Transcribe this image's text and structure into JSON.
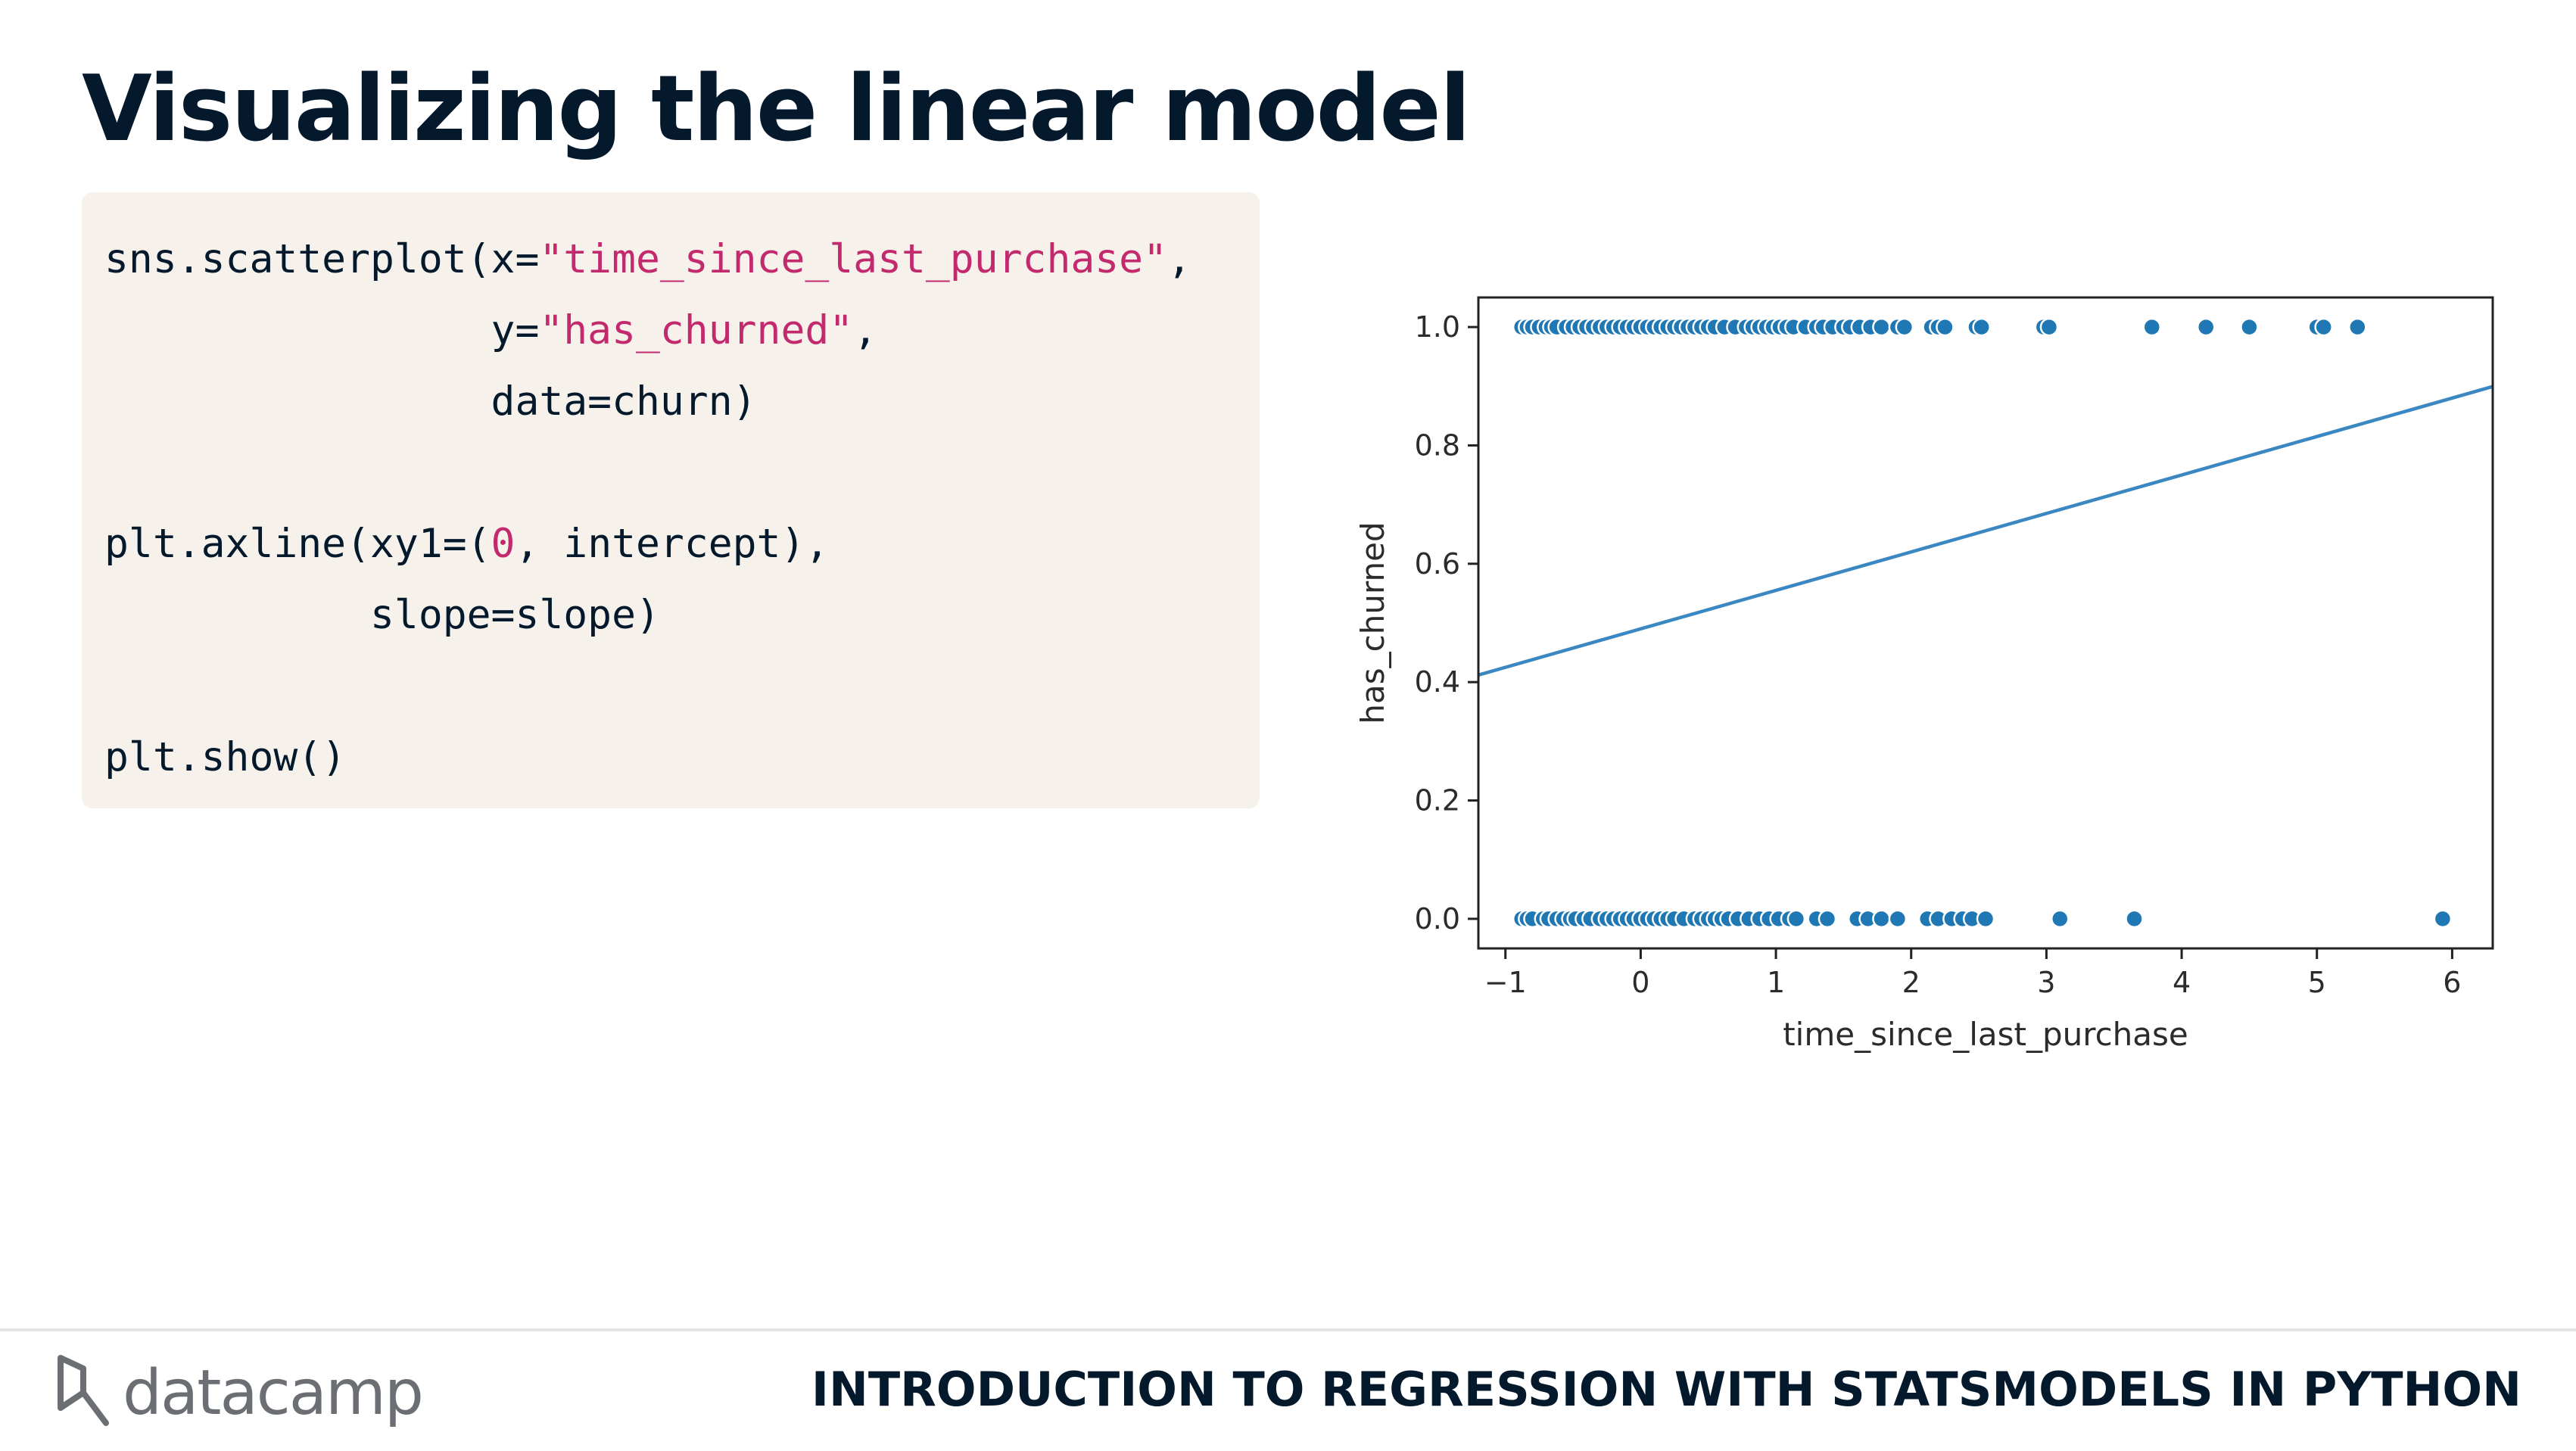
{
  "slide": {
    "title": "Visualizing the linear model",
    "course_title": "INTRODUCTION TO REGRESSION WITH STATSMODELS IN PYTHON",
    "brand": "datacamp",
    "logo_icon": "datacamp-logo-icon"
  },
  "code": {
    "lines": [
      [
        {
          "t": "sns.scatterplot(x="
        },
        {
          "t": "\"time_since_last_purchase\"",
          "c": "str"
        },
        {
          "t": ","
        }
      ],
      [
        {
          "t": "                y="
        },
        {
          "t": "\"has_churned\"",
          "c": "str"
        },
        {
          "t": ","
        }
      ],
      [
        {
          "t": "                data=churn)"
        }
      ],
      [
        {
          "t": ""
        }
      ],
      [
        {
          "t": "plt.axline(xy1=("
        },
        {
          "t": "0",
          "c": "num"
        },
        {
          "t": ", intercept),"
        }
      ],
      [
        {
          "t": "           slope=slope)"
        }
      ],
      [
        {
          "t": ""
        }
      ],
      [
        {
          "t": "plt.show()"
        }
      ]
    ]
  },
  "chart_data": {
    "type": "scatter",
    "xlabel": "time_since_last_purchase",
    "ylabel": "has_churned",
    "xlim": [
      -1.2,
      6.3
    ],
    "ylim": [
      -0.05,
      1.05
    ],
    "xticks": [
      -1,
      0,
      1,
      2,
      3,
      4,
      5,
      6
    ],
    "xtick_labels": [
      "−1",
      "0",
      "1",
      "2",
      "3",
      "4",
      "5",
      "6"
    ],
    "yticks": [
      0.0,
      0.2,
      0.4,
      0.6,
      0.8,
      1.0
    ],
    "ytick_labels": [
      "0.0",
      "0.2",
      "0.4",
      "0.6",
      "0.8",
      "1.0"
    ],
    "point_color": "#1f77b4",
    "line_color": "#3a87c2",
    "regression_line": {
      "intercept": 0.49,
      "slope": 0.065
    },
    "series": [
      {
        "values_y": 1,
        "x": [
          -0.88,
          -0.84,
          -0.8,
          -0.75,
          -0.7,
          -0.66,
          -0.62,
          -0.55,
          -0.5,
          -0.45,
          -0.4,
          -0.35,
          -0.3,
          -0.25,
          -0.2,
          -0.15,
          -0.1,
          -0.05,
          0.0,
          0.05,
          0.1,
          0.15,
          0.2,
          0.25,
          0.3,
          0.35,
          0.4,
          0.45,
          0.5,
          0.55,
          0.62,
          0.7,
          0.78,
          0.83,
          0.88,
          0.93,
          0.98,
          1.03,
          1.08,
          1.13,
          1.22,
          1.3,
          1.35,
          1.42,
          1.5,
          1.55,
          1.62,
          1.7,
          1.78,
          1.9,
          1.95,
          2.15,
          2.2,
          2.25,
          2.48,
          2.52,
          2.98,
          3.02,
          3.78,
          4.18,
          4.5,
          5.0,
          5.05,
          5.3
        ]
      },
      {
        "values_y": 0,
        "x": [
          -0.88,
          -0.84,
          -0.8,
          -0.72,
          -0.68,
          -0.62,
          -0.57,
          -0.52,
          -0.48,
          -0.42,
          -0.37,
          -0.3,
          -0.25,
          -0.2,
          -0.15,
          -0.1,
          -0.05,
          0.0,
          0.05,
          0.1,
          0.15,
          0.2,
          0.25,
          0.32,
          0.4,
          0.45,
          0.5,
          0.55,
          0.6,
          0.65,
          0.72,
          0.8,
          0.88,
          0.95,
          1.02,
          1.1,
          1.15,
          1.3,
          1.38,
          1.6,
          1.68,
          1.78,
          1.9,
          2.12,
          2.2,
          2.3,
          2.38,
          2.45,
          2.55,
          3.1,
          3.65,
          5.93
        ]
      }
    ]
  }
}
